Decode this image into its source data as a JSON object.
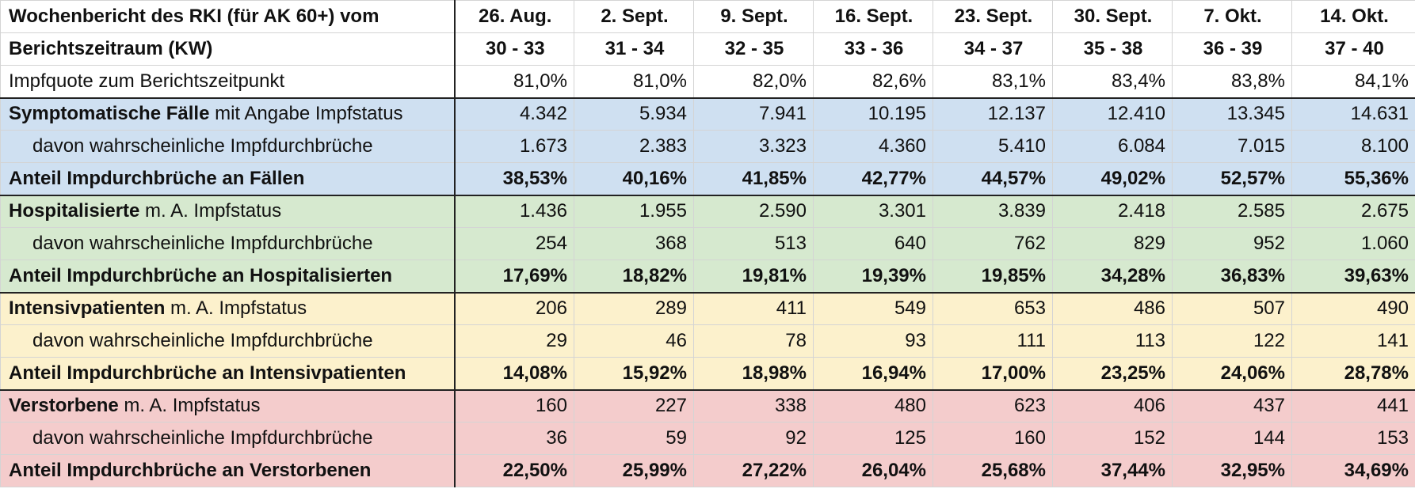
{
  "colors": {
    "white": "#ffffff",
    "cases": "#cfe0f1",
    "hospital": "#d6e9cf",
    "icu": "#fcf1cc",
    "deaths": "#f4cccc",
    "grid": "#d4d4d4",
    "separator": "#222222"
  },
  "table": {
    "rows": [
      {
        "id": "report-dates",
        "section": "white",
        "style": "bold",
        "align": "hdr",
        "label_lead": "Wochenbericht des RKI (für AK 60+) vom",
        "label_rest": "",
        "values": [
          "26. Aug.",
          "2. Sept.",
          "9. Sept.",
          "16. Sept.",
          "23. Sept.",
          "30. Sept.",
          "7. Okt.",
          "14. Okt."
        ]
      },
      {
        "id": "report-weeks",
        "section": "white",
        "style": "bold",
        "align": "hdr",
        "label_lead": "Berichtszeitraum (KW)",
        "label_rest": "",
        "values": [
          "30 - 33",
          "31 - 34",
          "32 - 35",
          "33 - 36",
          "34 - 37",
          "35 - 38",
          "36 - 39",
          "37 - 40"
        ]
      },
      {
        "id": "vaccination-rate",
        "section": "white",
        "style": "normal",
        "align": "num",
        "sep_bottom": true,
        "label_lead": "",
        "label_rest": "Impfquote zum Berichtszeitpunkt",
        "values": [
          "81,0%",
          "81,0%",
          "82,0%",
          "82,6%",
          "83,1%",
          "83,4%",
          "83,8%",
          "84,1%"
        ]
      },
      {
        "id": "cases-total",
        "section": "cases",
        "style": "normal",
        "align": "num",
        "label_lead": "Symptomatische Fälle",
        "label_rest": " mit Angabe Impfstatus",
        "values": [
          "4.342",
          "5.934",
          "7.941",
          "10.195",
          "12.137",
          "12.410",
          "13.345",
          "14.631"
        ]
      },
      {
        "id": "cases-breakthrough",
        "section": "cases",
        "style": "normal",
        "align": "num",
        "indent": true,
        "label_lead": "",
        "label_rest": "davon wahrscheinliche Impfdurchbrüche",
        "values": [
          "1.673",
          "2.383",
          "3.323",
          "4.360",
          "5.410",
          "6.084",
          "7.015",
          "8.100"
        ]
      },
      {
        "id": "cases-share",
        "section": "cases",
        "style": "bold",
        "align": "num",
        "sep_bottom": true,
        "label_lead": "Anteil Impdurchbrüche an Fällen",
        "label_rest": "",
        "values": [
          "38,53%",
          "40,16%",
          "41,85%",
          "42,77%",
          "44,57%",
          "49,02%",
          "52,57%",
          "55,36%"
        ]
      },
      {
        "id": "hospital-total",
        "section": "hospital",
        "style": "normal",
        "align": "num",
        "label_lead": "Hospitalisierte",
        "label_rest": " m. A. Impfstatus",
        "values": [
          "1.436",
          "1.955",
          "2.590",
          "3.301",
          "3.839",
          "2.418",
          "2.585",
          "2.675"
        ]
      },
      {
        "id": "hospital-breakthrough",
        "section": "hospital",
        "style": "normal",
        "align": "num",
        "indent": true,
        "label_lead": "",
        "label_rest": "davon wahrscheinliche Impfdurchbrüche",
        "values": [
          "254",
          "368",
          "513",
          "640",
          "762",
          "829",
          "952",
          "1.060"
        ]
      },
      {
        "id": "hospital-share",
        "section": "hospital",
        "style": "bold",
        "align": "num",
        "sep_bottom": true,
        "label_lead": "Anteil Impdurchbrüche an Hospitalisierten",
        "label_rest": "",
        "values": [
          "17,69%",
          "18,82%",
          "19,81%",
          "19,39%",
          "19,85%",
          "34,28%",
          "36,83%",
          "39,63%"
        ]
      },
      {
        "id": "icu-total",
        "section": "icu",
        "style": "normal",
        "align": "num",
        "label_lead": "Intensivpatienten",
        "label_rest": " m. A. Impfstatus",
        "values": [
          "206",
          "289",
          "411",
          "549",
          "653",
          "486",
          "507",
          "490"
        ]
      },
      {
        "id": "icu-breakthrough",
        "section": "icu",
        "style": "normal",
        "align": "num",
        "indent": true,
        "label_lead": "",
        "label_rest": "davon wahrscheinliche Impfdurchbrüche",
        "values": [
          "29",
          "46",
          "78",
          "93",
          "111",
          "113",
          "122",
          "141"
        ]
      },
      {
        "id": "icu-share",
        "section": "icu",
        "style": "bold",
        "align": "num",
        "sep_bottom": true,
        "label_lead": "Anteil Impdurchbrüche an Intensivpatienten",
        "label_rest": "",
        "values": [
          "14,08%",
          "15,92%",
          "18,98%",
          "16,94%",
          "17,00%",
          "23,25%",
          "24,06%",
          "28,78%"
        ]
      },
      {
        "id": "deaths-total",
        "section": "deaths",
        "style": "normal",
        "align": "num",
        "label_lead": "Verstorbene",
        "label_rest": " m. A. Impfstatus",
        "values": [
          "160",
          "227",
          "338",
          "480",
          "623",
          "406",
          "437",
          "441"
        ]
      },
      {
        "id": "deaths-breakthrough",
        "section": "deaths",
        "style": "normal",
        "align": "num",
        "indent": true,
        "label_lead": "",
        "label_rest": "davon wahrscheinliche Impfdurchbrüche",
        "values": [
          "36",
          "59",
          "92",
          "125",
          "160",
          "152",
          "144",
          "153"
        ]
      },
      {
        "id": "deaths-share",
        "section": "deaths",
        "style": "bold",
        "align": "num",
        "label_lead": "Anteil Impdurchbrüche an Verstorbenen",
        "label_rest": "",
        "values": [
          "22,50%",
          "25,99%",
          "27,22%",
          "26,04%",
          "25,68%",
          "37,44%",
          "32,95%",
          "34,69%"
        ]
      }
    ]
  }
}
